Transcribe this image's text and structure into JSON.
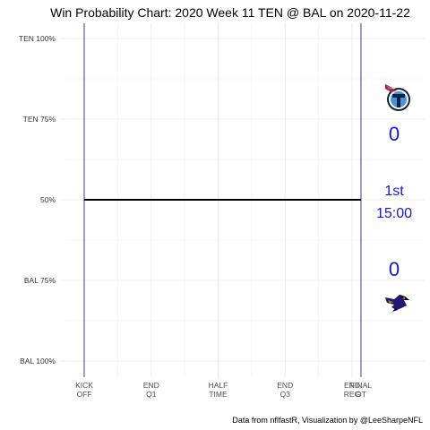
{
  "chart_data": {
    "type": "line",
    "title": "Win Probability Chart: 2020 Week 11 TEN @ BAL on 2020-11-22",
    "xlabel": "",
    "ylabel": "",
    "x_ticks": [
      {
        "x": 0,
        "label": [
          "KICK",
          "OFF"
        ]
      },
      {
        "x": 15,
        "label": [
          "END",
          "Q1"
        ]
      },
      {
        "x": 30,
        "label": [
          "HALF",
          "TIME"
        ]
      },
      {
        "x": 45,
        "label": [
          "END",
          "Q3"
        ]
      },
      {
        "x": 60,
        "label": [
          "END",
          "REG"
        ]
      },
      {
        "x": 62,
        "label": [
          "FINAL",
          "OT"
        ]
      }
    ],
    "y_ticks": [
      {
        "y": 1.0,
        "label": "TEN 100%"
      },
      {
        "y": 0.75,
        "label": "TEN 75%"
      },
      {
        "y": 0.5,
        "label": "50%"
      },
      {
        "y": 0.25,
        "label": "BAL 75%"
      },
      {
        "y": 0.0,
        "label": "BAL 100%"
      }
    ],
    "xlim": [
      0,
      75
    ],
    "ylim": [
      0,
      1
    ],
    "grid": true,
    "series": [
      {
        "x": [
          0,
          62
        ],
        "y": [
          0.5,
          0.5
        ],
        "color": "#000000"
      }
    ],
    "vlines": [
      0,
      62
    ],
    "vline_color": "#3b3b9a",
    "annotations": {
      "away_team": "TEN",
      "home_team": "BAL",
      "away_score": "0",
      "home_score": "0",
      "period": "1st",
      "clock": "15:00",
      "score_color": "#1515d6"
    },
    "caption": "Data from nflfastR, Visualization by @LeeSharpeNFL"
  },
  "icons": {
    "away_logo": "titans-logo-icon",
    "home_logo": "ravens-logo-icon"
  }
}
